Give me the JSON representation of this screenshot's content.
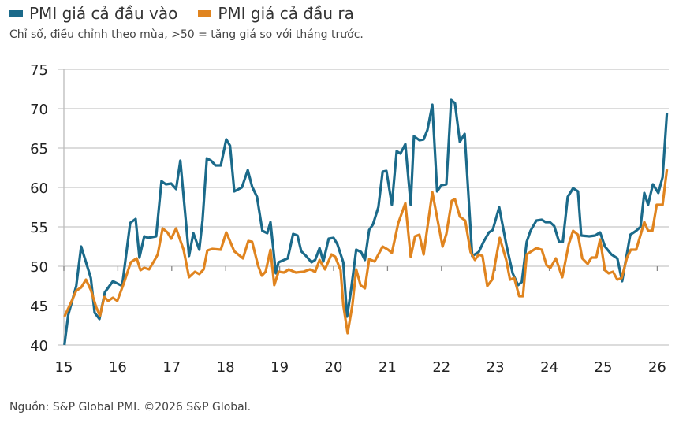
{
  "legend": [
    {
      "label": "PMI giá cả đầu vào",
      "color": "#1b6a8a"
    },
    {
      "label": "PMI giá cả đầu ra",
      "color": "#e0841f"
    }
  ],
  "subtitle": "Chỉ số, điều chỉnh theo mùa, >50 = tăng giá so với tháng trước.",
  "footer": "Nguồn: S&P Global PMI. ©2026 S&P Global.",
  "chart_data": {
    "type": "line",
    "title": "",
    "xlabel": "",
    "ylabel": "",
    "ylim": [
      40,
      75
    ],
    "xlim": [
      2015,
      2026.2
    ],
    "yticks": [
      40,
      45,
      50,
      55,
      60,
      65,
      70,
      75
    ],
    "xticks": [
      {
        "x": 2015,
        "label": "15"
      },
      {
        "x": 2016,
        "label": "16"
      },
      {
        "x": 2017,
        "label": "17"
      },
      {
        "x": 2018,
        "label": "18"
      },
      {
        "x": 2019,
        "label": "19"
      },
      {
        "x": 2020,
        "label": "20"
      },
      {
        "x": 2021,
        "label": "21"
      },
      {
        "x": 2022,
        "label": "22"
      },
      {
        "x": 2023,
        "label": "23"
      },
      {
        "x": 2024,
        "label": "24"
      },
      {
        "x": 2025,
        "label": "25"
      },
      {
        "x": 2026,
        "label": "26"
      }
    ],
    "grid": true,
    "legend_position": "top-left",
    "series": [
      {
        "name": "PMI giá cả đầu vào",
        "color": "#1b6a8a",
        "points": [
          [
            2015.01,
            40
          ],
          [
            2015.08,
            43.8
          ],
          [
            2015.23,
            47.5
          ],
          [
            2015.32,
            52.5
          ],
          [
            2015.5,
            48.5
          ],
          [
            2015.57,
            44.1
          ],
          [
            2015.66,
            43.3
          ],
          [
            2015.76,
            46.7
          ],
          [
            2015.91,
            48.1
          ],
          [
            2016.08,
            47.5
          ],
          [
            2016.23,
            55.5
          ],
          [
            2016.33,
            56
          ],
          [
            2016.4,
            51.1
          ],
          [
            2016.49,
            53.8
          ],
          [
            2016.56,
            53.6
          ],
          [
            2016.71,
            53.8
          ],
          [
            2016.81,
            60.8
          ],
          [
            2016.89,
            60.4
          ],
          [
            2016.99,
            60.5
          ],
          [
            2017.08,
            59.8
          ],
          [
            2017.16,
            63.4
          ],
          [
            2017.32,
            51.3
          ],
          [
            2017.4,
            54.2
          ],
          [
            2017.51,
            52.1
          ],
          [
            2017.57,
            55.8
          ],
          [
            2017.65,
            63.7
          ],
          [
            2017.73,
            63.4
          ],
          [
            2017.81,
            62.8
          ],
          [
            2017.91,
            62.8
          ],
          [
            2018.01,
            66.1
          ],
          [
            2018.08,
            65.3
          ],
          [
            2018.16,
            59.5
          ],
          [
            2018.3,
            60
          ],
          [
            2018.41,
            62.2
          ],
          [
            2018.49,
            60.1
          ],
          [
            2018.58,
            58.8
          ],
          [
            2018.68,
            54.5
          ],
          [
            2018.77,
            54.2
          ],
          [
            2018.83,
            55.6
          ],
          [
            2018.93,
            49.1
          ],
          [
            2018.98,
            50.5
          ],
          [
            2019.15,
            51
          ],
          [
            2019.25,
            54.1
          ],
          [
            2019.33,
            53.9
          ],
          [
            2019.4,
            51.9
          ],
          [
            2019.49,
            51.3
          ],
          [
            2019.59,
            50.5
          ],
          [
            2019.66,
            50.8
          ],
          [
            2019.74,
            52.3
          ],
          [
            2019.81,
            50.6
          ],
          [
            2019.91,
            53.5
          ],
          [
            2020.0,
            53.6
          ],
          [
            2020.07,
            52.8
          ],
          [
            2020.18,
            50.5
          ],
          [
            2020.25,
            43.6
          ],
          [
            2020.32,
            46.8
          ],
          [
            2020.42,
            52.1
          ],
          [
            2020.51,
            51.8
          ],
          [
            2020.58,
            50.8
          ],
          [
            2020.66,
            54.6
          ],
          [
            2020.73,
            55.3
          ],
          [
            2020.83,
            57.5
          ],
          [
            2020.91,
            62
          ],
          [
            2020.98,
            62.1
          ],
          [
            2021.08,
            57.8
          ],
          [
            2021.17,
            64.6
          ],
          [
            2021.24,
            64.3
          ],
          [
            2021.33,
            65.5
          ],
          [
            2021.43,
            57.8
          ],
          [
            2021.49,
            66.5
          ],
          [
            2021.59,
            66
          ],
          [
            2021.67,
            66.1
          ],
          [
            2021.74,
            67.3
          ],
          [
            2021.83,
            70.5
          ],
          [
            2021.92,
            59.5
          ],
          [
            2022.0,
            60.3
          ],
          [
            2022.09,
            60.4
          ],
          [
            2022.18,
            71.1
          ],
          [
            2022.25,
            70.7
          ],
          [
            2022.34,
            65.8
          ],
          [
            2022.43,
            66.8
          ],
          [
            2022.57,
            51.3
          ],
          [
            2022.69,
            51.8
          ],
          [
            2022.78,
            53.1
          ],
          [
            2022.88,
            54.3
          ],
          [
            2022.95,
            54.6
          ],
          [
            2023.07,
            57.5
          ],
          [
            2023.2,
            52.8
          ],
          [
            2023.32,
            49.1
          ],
          [
            2023.42,
            47.6
          ],
          [
            2023.49,
            48
          ],
          [
            2023.58,
            53.1
          ],
          [
            2023.65,
            54.5
          ],
          [
            2023.76,
            55.8
          ],
          [
            2023.86,
            55.9
          ],
          [
            2023.93,
            55.6
          ],
          [
            2024.01,
            55.6
          ],
          [
            2024.09,
            55.1
          ],
          [
            2024.18,
            53.1
          ],
          [
            2024.25,
            53.1
          ],
          [
            2024.34,
            58.8
          ],
          [
            2024.44,
            59.9
          ],
          [
            2024.53,
            59.5
          ],
          [
            2024.59,
            53.9
          ],
          [
            2024.74,
            53.8
          ],
          [
            2024.85,
            53.9
          ],
          [
            2024.94,
            54.3
          ],
          [
            2025.03,
            52.5
          ],
          [
            2025.15,
            51.5
          ],
          [
            2025.26,
            51
          ],
          [
            2025.35,
            48.1
          ],
          [
            2025.5,
            54
          ],
          [
            2025.61,
            54.5
          ],
          [
            2025.69,
            55
          ],
          [
            2025.76,
            59.3
          ],
          [
            2025.83,
            57.8
          ],
          [
            2025.92,
            60.4
          ],
          [
            2026.02,
            59.3
          ],
          [
            2026.1,
            61.3
          ],
          [
            2026.18,
            69.5
          ]
        ]
      },
      {
        "name": "PMI giá cả đầu ra",
        "color": "#e0841f",
        "points": [
          [
            2015.01,
            43.6
          ],
          [
            2015.16,
            45.8
          ],
          [
            2015.23,
            46.9
          ],
          [
            2015.32,
            47.3
          ],
          [
            2015.41,
            48.3
          ],
          [
            2015.5,
            47
          ],
          [
            2015.6,
            44.8
          ],
          [
            2015.67,
            43.7
          ],
          [
            2015.75,
            46.1
          ],
          [
            2015.82,
            45.6
          ],
          [
            2015.91,
            46
          ],
          [
            2015.99,
            45.6
          ],
          [
            2016.11,
            47.8
          ],
          [
            2016.24,
            50.5
          ],
          [
            2016.35,
            51
          ],
          [
            2016.42,
            49.5
          ],
          [
            2016.49,
            49.8
          ],
          [
            2016.58,
            49.6
          ],
          [
            2016.7,
            51
          ],
          [
            2016.74,
            51.5
          ],
          [
            2016.83,
            54.8
          ],
          [
            2016.92,
            54.3
          ],
          [
            2016.99,
            53.5
          ],
          [
            2017.08,
            54.8
          ],
          [
            2017.22,
            52.1
          ],
          [
            2017.32,
            48.6
          ],
          [
            2017.43,
            49.3
          ],
          [
            2017.51,
            49
          ],
          [
            2017.59,
            49.6
          ],
          [
            2017.66,
            52
          ],
          [
            2017.75,
            52.2
          ],
          [
            2017.91,
            52.1
          ],
          [
            2018.01,
            54.3
          ],
          [
            2018.16,
            51.9
          ],
          [
            2018.32,
            51
          ],
          [
            2018.42,
            53.2
          ],
          [
            2018.49,
            53.1
          ],
          [
            2018.6,
            50.1
          ],
          [
            2018.67,
            48.8
          ],
          [
            2018.74,
            49.3
          ],
          [
            2018.83,
            52.1
          ],
          [
            2018.9,
            47.6
          ],
          [
            2018.98,
            49.3
          ],
          [
            2019.08,
            49.2
          ],
          [
            2019.17,
            49.6
          ],
          [
            2019.3,
            49.2
          ],
          [
            2019.44,
            49.3
          ],
          [
            2019.56,
            49.6
          ],
          [
            2019.66,
            49.3
          ],
          [
            2019.74,
            50.8
          ],
          [
            2019.84,
            49.6
          ],
          [
            2019.96,
            51.5
          ],
          [
            2020.03,
            51.2
          ],
          [
            2020.13,
            49.5
          ],
          [
            2020.18,
            45.1
          ],
          [
            2020.26,
            41.5
          ],
          [
            2020.35,
            45.1
          ],
          [
            2020.42,
            49.6
          ],
          [
            2020.5,
            47.6
          ],
          [
            2020.58,
            47.2
          ],
          [
            2020.66,
            50.9
          ],
          [
            2020.76,
            50.6
          ],
          [
            2020.91,
            52.5
          ],
          [
            2021.01,
            52.1
          ],
          [
            2021.08,
            51.7
          ],
          [
            2021.2,
            55.5
          ],
          [
            2021.33,
            58
          ],
          [
            2021.43,
            51.2
          ],
          [
            2021.51,
            53.8
          ],
          [
            2021.59,
            54
          ],
          [
            2021.67,
            51.5
          ],
          [
            2021.83,
            59.4
          ],
          [
            2021.93,
            55.8
          ],
          [
            2022.02,
            52.5
          ],
          [
            2022.09,
            54.1
          ],
          [
            2022.19,
            58.3
          ],
          [
            2022.25,
            58.5
          ],
          [
            2022.34,
            56.3
          ],
          [
            2022.44,
            55.8
          ],
          [
            2022.54,
            51.8
          ],
          [
            2022.62,
            50.8
          ],
          [
            2022.69,
            51.5
          ],
          [
            2022.76,
            51.3
          ],
          [
            2022.85,
            47.5
          ],
          [
            2022.94,
            48.3
          ],
          [
            2023.08,
            53.6
          ],
          [
            2023.2,
            50.8
          ],
          [
            2023.27,
            48.3
          ],
          [
            2023.35,
            48.5
          ],
          [
            2023.44,
            46.2
          ],
          [
            2023.51,
            46.2
          ],
          [
            2023.58,
            51.5
          ],
          [
            2023.76,
            52.3
          ],
          [
            2023.86,
            52.1
          ],
          [
            2023.95,
            50.1
          ],
          [
            2024.02,
            49.8
          ],
          [
            2024.12,
            51
          ],
          [
            2024.24,
            48.6
          ],
          [
            2024.36,
            52.8
          ],
          [
            2024.44,
            54.5
          ],
          [
            2024.53,
            54
          ],
          [
            2024.61,
            51
          ],
          [
            2024.71,
            50.3
          ],
          [
            2024.78,
            51.1
          ],
          [
            2024.87,
            51.1
          ],
          [
            2024.94,
            53.4
          ],
          [
            2025.03,
            49.5
          ],
          [
            2025.1,
            49.1
          ],
          [
            2025.18,
            49.3
          ],
          [
            2025.26,
            48.3
          ],
          [
            2025.34,
            48.5
          ],
          [
            2025.44,
            51.1
          ],
          [
            2025.51,
            52.1
          ],
          [
            2025.61,
            52.1
          ],
          [
            2025.76,
            55.6
          ],
          [
            2025.83,
            54.5
          ],
          [
            2025.91,
            54.5
          ],
          [
            2025.99,
            57.8
          ],
          [
            2026.1,
            57.8
          ],
          [
            2026.18,
            62.3
          ]
        ]
      }
    ]
  }
}
